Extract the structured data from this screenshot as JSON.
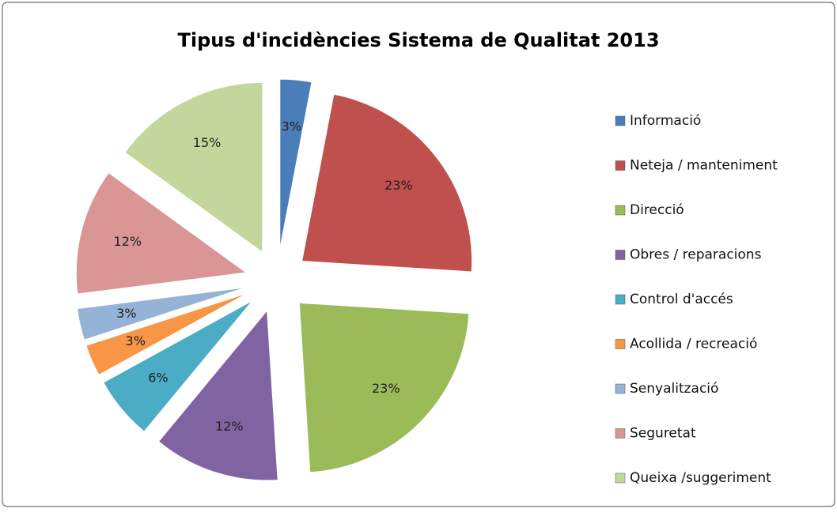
{
  "chart_data": {
    "type": "pie",
    "title": "Tipus d'incidències Sistema de Qualitat 2013",
    "categories": [
      "Informació",
      "Neteja / manteniment",
      "Direcció",
      "Obres / reparacions",
      "Control d'accés",
      "Acollida / recreació",
      "Senyalització",
      "Seguretat",
      "Queixa /suggeriment"
    ],
    "values": [
      3,
      23,
      23,
      12,
      6,
      3,
      3,
      12,
      15
    ],
    "value_labels": [
      "3%",
      "23%",
      "23%",
      "12%",
      "6%",
      "3%",
      "3%",
      "12%",
      "15%"
    ],
    "colors": [
      "#4a7ebb",
      "#c0504d",
      "#9bbb59",
      "#8064a2",
      "#4bacc6",
      "#f79646",
      "#95b3d7",
      "#d99694",
      "#c3d69b"
    ],
    "exploded": true,
    "legend": "right"
  }
}
